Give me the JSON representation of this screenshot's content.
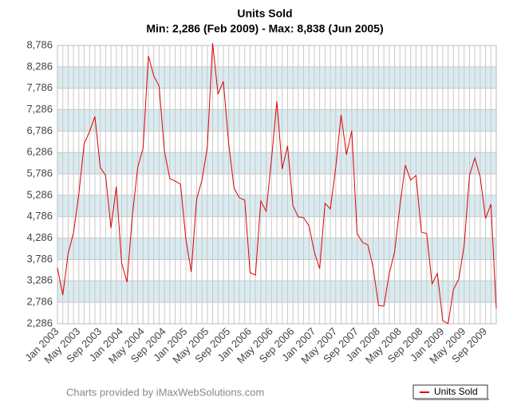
{
  "chart_data": {
    "type": "line",
    "title": "Units Sold",
    "subtitle": "Min: 2,286 (Feb 2009) - Max: 8,838 (Jun 2005)",
    "credit": "Charts provided by iMaxWebSolutions.com",
    "legend": "bottom-right",
    "grid": true,
    "categories": [
      "Jan 2003",
      null,
      null,
      null,
      "May 2003",
      null,
      null,
      null,
      "Sep 2003",
      null,
      null,
      null,
      "Jan 2004",
      null,
      null,
      null,
      "May 2004",
      null,
      null,
      null,
      "Sep 2004",
      null,
      null,
      null,
      "Jan 2005",
      null,
      null,
      null,
      "May 2005",
      null,
      null,
      null,
      "Sep 2005",
      null,
      null,
      null,
      "Jan 2006",
      null,
      null,
      null,
      "May 2006",
      null,
      null,
      null,
      "Sep 2006",
      null,
      null,
      null,
      "Jan 2007",
      null,
      null,
      null,
      "May 2007",
      null,
      null,
      null,
      "Sep 2007",
      null,
      null,
      null,
      "Jan 2008",
      null,
      null,
      null,
      "May 2008",
      null,
      null,
      null,
      "Sep 2008",
      null,
      null,
      null,
      "Jan 2009",
      null,
      null,
      null,
      "May 2009",
      null,
      null,
      null,
      "Sep 2009",
      null,
      null
    ],
    "series": [
      {
        "name": "Units Sold",
        "color": "#e00000",
        "values": [
          3590,
          2956,
          3925,
          4409,
          5321,
          6494,
          6773,
          7127,
          5936,
          5749,
          4520,
          5489,
          3701,
          3254,
          4818,
          5936,
          6382,
          8542,
          8077,
          7835,
          6308,
          5675,
          5619,
          5545,
          4260,
          3496,
          5191,
          5638,
          6401,
          8838,
          7648,
          7946,
          6494,
          5452,
          5228,
          5172,
          3478,
          3422,
          5154,
          4911,
          6122,
          7481,
          5898,
          6438,
          5042,
          4781,
          4762,
          4576,
          3962,
          3571,
          5098,
          4967,
          5936,
          7165,
          6234,
          6792,
          4390,
          4185,
          4129,
          3590,
          2714,
          2696,
          3459,
          3962,
          5042,
          5991,
          5638,
          5749,
          4427,
          4390,
          3217,
          3459,
          2360,
          2286,
          3087,
          3329,
          4111,
          5749,
          6159,
          5712,
          4744,
          5079,
          2640
        ]
      }
    ],
    "ylim": [
      2286,
      8786
    ],
    "yticks": [
      {
        "value": 2286,
        "label": "2,286"
      },
      {
        "value": 2786,
        "label": "2,786"
      },
      {
        "value": 3286,
        "label": "3,286"
      },
      {
        "value": 3786,
        "label": "3,786"
      },
      {
        "value": 4286,
        "label": "4,286"
      },
      {
        "value": 4786,
        "label": "4,786"
      },
      {
        "value": 5286,
        "label": "5,286"
      },
      {
        "value": 5786,
        "label": "5,786"
      },
      {
        "value": 6286,
        "label": "6,286"
      },
      {
        "value": 6786,
        "label": "6,786"
      },
      {
        "value": 7286,
        "label": "7,286"
      },
      {
        "value": 7786,
        "label": "7,786"
      },
      {
        "value": 8286,
        "label": "8,286"
      },
      {
        "value": 8786,
        "label": "8,786"
      }
    ]
  }
}
